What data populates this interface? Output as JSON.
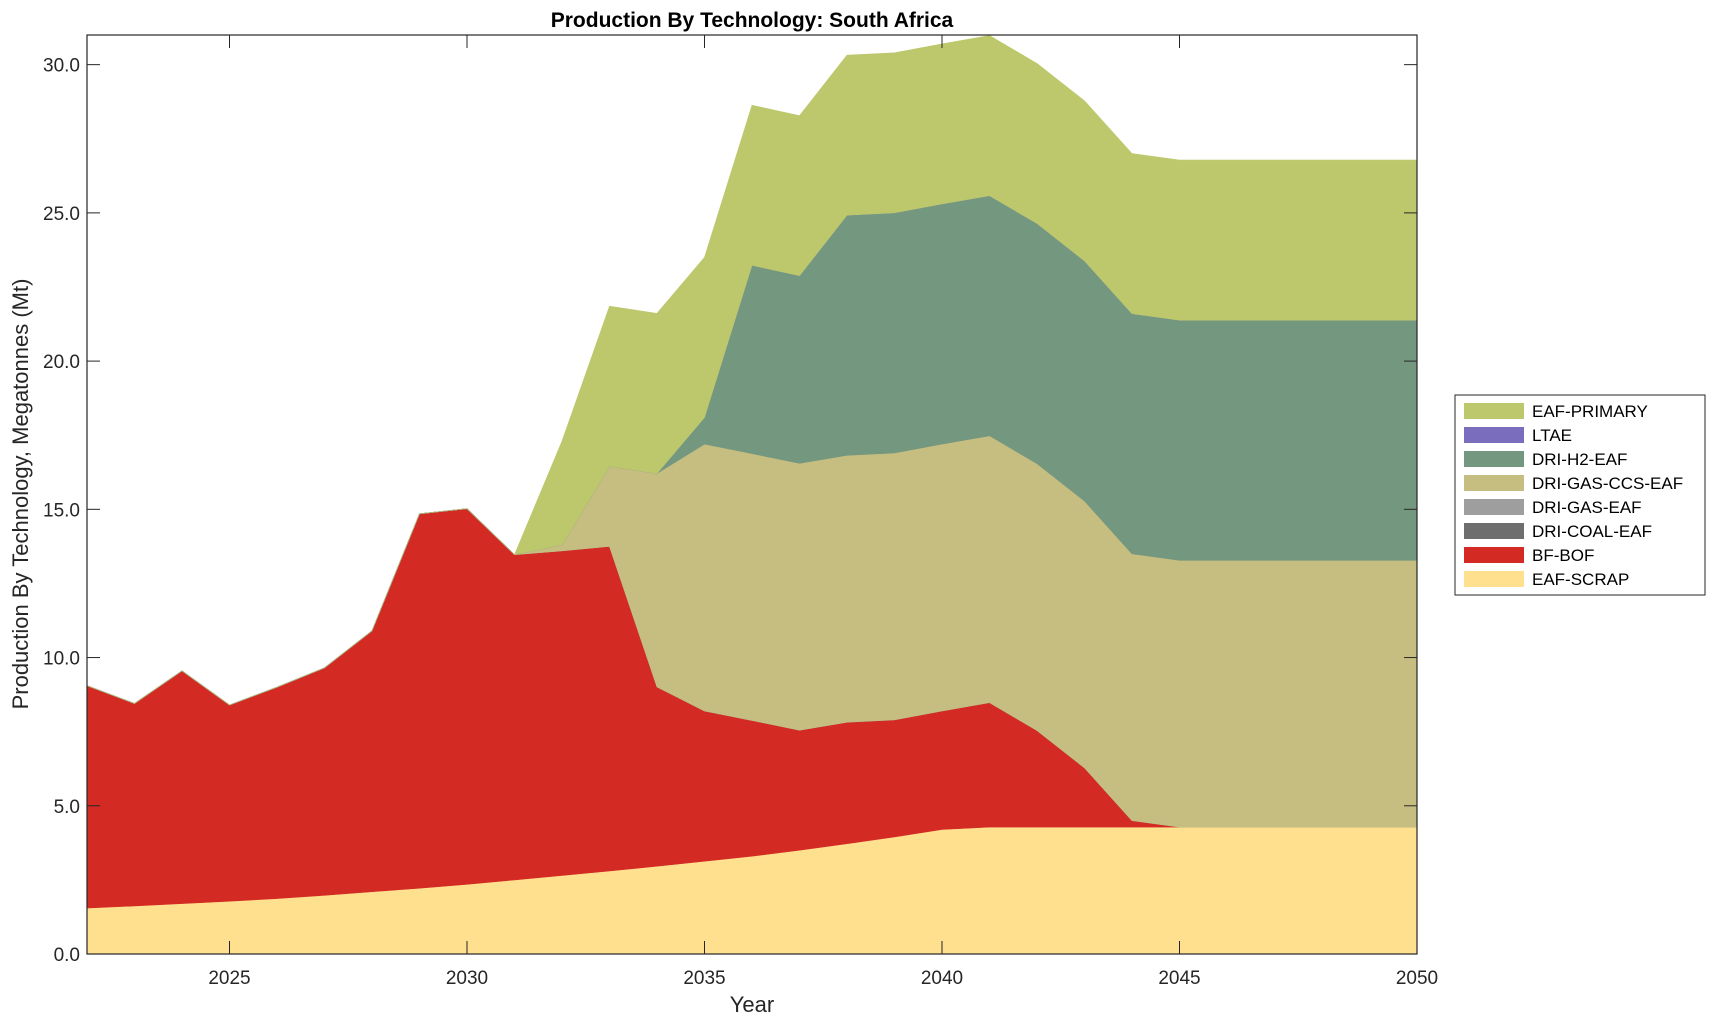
{
  "chart_data": {
    "type": "area",
    "stacked": true,
    "title": "Production By Technology: South Africa",
    "xlabel": "Year",
    "ylabel": "Production By Technology, Megatonnes (Mt)",
    "xlim": [
      2022,
      2050
    ],
    "ylim": [
      0,
      31
    ],
    "xticks": [
      2025,
      2030,
      2035,
      2040,
      2045,
      2050
    ],
    "xtick_labels": [
      "2025",
      "2030",
      "2035",
      "2040",
      "2045",
      "2050"
    ],
    "yticks": [
      0,
      5,
      10,
      15,
      20,
      25,
      30
    ],
    "ytick_labels": [
      "0.0",
      "5.0",
      "10.0",
      "15.0",
      "20.0",
      "25.0",
      "30.0"
    ],
    "grid": false,
    "legend_position": "right",
    "x": [
      2022,
      2023,
      2024,
      2025,
      2026,
      2027,
      2028,
      2029,
      2030,
      2031,
      2032,
      2033,
      2034,
      2035,
      2036,
      2037,
      2038,
      2039,
      2040,
      2041,
      2042,
      2043,
      2044,
      2045,
      2046,
      2047,
      2048,
      2049,
      2050
    ],
    "series": [
      {
        "name": "EAF-SCRAP",
        "color": "#FEE08F",
        "values": [
          1.55,
          1.62,
          1.7,
          1.78,
          1.87,
          1.98,
          2.1,
          2.22,
          2.35,
          2.5,
          2.65,
          2.8,
          2.96,
          3.13,
          3.3,
          3.5,
          3.72,
          3.95,
          4.2,
          4.28,
          4.28,
          4.28,
          4.28,
          4.28,
          4.28,
          4.28,
          4.28,
          4.28,
          4.28
        ]
      },
      {
        "name": "BF-BOF",
        "color": "#D42A24",
        "values": [
          7.5,
          6.83,
          7.85,
          6.62,
          7.13,
          7.67,
          8.8,
          12.63,
          12.67,
          10.97,
          10.95,
          10.95,
          6.05,
          5.07,
          4.58,
          4.05,
          4.1,
          3.95,
          4.0,
          4.2,
          3.26,
          2.0,
          0.22,
          0,
          0,
          0,
          0,
          0,
          0
        ]
      },
      {
        "name": "DRI-COAL-EAF",
        "color": "#6E6E6E",
        "values": [
          0,
          0,
          0,
          0,
          0,
          0,
          0,
          0,
          0,
          0,
          0,
          0,
          0,
          0,
          0,
          0,
          0,
          0,
          0,
          0,
          0,
          0,
          0,
          0,
          0,
          0,
          0,
          0,
          0
        ]
      },
      {
        "name": "DRI-GAS-EAF",
        "color": "#9E9E9E",
        "values": [
          0,
          0,
          0,
          0,
          0,
          0,
          0,
          0,
          0,
          0,
          0,
          0,
          0,
          0,
          0,
          0,
          0,
          0,
          0,
          0,
          0,
          0,
          0,
          0,
          0,
          0,
          0,
          0,
          0
        ]
      },
      {
        "name": "DRI-GAS-CCS-EAF",
        "color": "#C6BE80",
        "values": [
          0,
          0,
          0,
          0,
          0,
          0,
          0,
          0,
          0,
          0,
          0.2,
          2.7,
          7.2,
          9.0,
          9.0,
          9.0,
          9.0,
          9.0,
          9.0,
          9.0,
          9.0,
          9.0,
          9.0,
          9.0,
          9.0,
          9.0,
          9.0,
          9.0,
          9.0
        ]
      },
      {
        "name": "DRI-H2-EAF",
        "color": "#749780",
        "values": [
          0,
          0,
          0,
          0,
          0,
          0,
          0,
          0,
          0,
          0,
          0,
          0,
          0,
          0.9,
          6.35,
          6.33,
          8.1,
          8.1,
          8.1,
          8.1,
          8.1,
          8.1,
          8.1,
          8.1,
          8.1,
          8.1,
          8.1,
          8.1,
          8.1
        ]
      },
      {
        "name": "LTAE",
        "color": "#7B6DBE",
        "values": [
          0,
          0,
          0,
          0,
          0,
          0,
          0,
          0,
          0,
          0,
          0,
          0,
          0,
          0,
          0,
          0,
          0,
          0,
          0,
          0,
          0,
          0,
          0,
          0,
          0,
          0,
          0,
          0,
          0
        ]
      },
      {
        "name": "EAF-PRIMARY",
        "color": "#BCC86B",
        "values": [
          0,
          0,
          0,
          0,
          0,
          0,
          0,
          0,
          0,
          0,
          3.5,
          5.4,
          5.4,
          5.4,
          5.4,
          5.4,
          5.4,
          5.4,
          5.4,
          5.4,
          5.4,
          5.4,
          5.4,
          5.4,
          5.4,
          5.4,
          5.4,
          5.4,
          5.4
        ]
      }
    ],
    "legend_order": [
      "EAF-PRIMARY",
      "LTAE",
      "DRI-H2-EAF",
      "DRI-GAS-CCS-EAF",
      "DRI-GAS-EAF",
      "DRI-COAL-EAF",
      "BF-BOF",
      "EAF-SCRAP"
    ]
  }
}
